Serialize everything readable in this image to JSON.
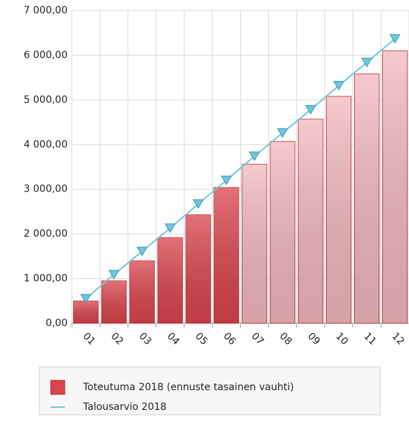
{
  "chart_data": {
    "type": "bar",
    "categories": [
      "01",
      "02",
      "03",
      "04",
      "05",
      "06",
      "07",
      "08",
      "09",
      "10",
      "11",
      "12"
    ],
    "series": [
      {
        "name": "Toteutuma 2018 (ennuste tasainen vauhti)",
        "type": "bar",
        "color": "#d9444c",
        "colors": [
          "#d9444c",
          "#d9444c",
          "#d9444c",
          "#d9444c",
          "#d9444c",
          "#d9444c",
          "#f2b8bd",
          "#f2b8bd",
          "#f2b8bd",
          "#f2b8bd",
          "#f2b8bd",
          "#f2b8bd"
        ],
        "values": [
          500,
          950,
          1400,
          1920,
          2430,
          3040,
          3560,
          4070,
          4570,
          5080,
          5580,
          6100
        ]
      },
      {
        "name": "Talousarvio 2018",
        "type": "line",
        "color": "#6ec6dc",
        "values": [
          550,
          1090,
          1610,
          2130,
          2670,
          3200,
          3740,
          4260,
          4780,
          5320,
          5840,
          6370
        ]
      }
    ],
    "ylim": [
      0,
      7000
    ],
    "yticks": [
      {
        "value": 0,
        "label": "0,00"
      },
      {
        "value": 1000,
        "label": "1 000,00"
      },
      {
        "value": 2000,
        "label": "2 000,00"
      },
      {
        "value": 3000,
        "label": "3 000,00"
      },
      {
        "value": 4000,
        "label": "4 000,00"
      },
      {
        "value": 5000,
        "label": "5 000,00"
      },
      {
        "value": 6000,
        "label": "6 000,00"
      },
      {
        "value": 7000,
        "label": "7 000,00"
      }
    ],
    "grid": true,
    "legend": "bottom"
  }
}
